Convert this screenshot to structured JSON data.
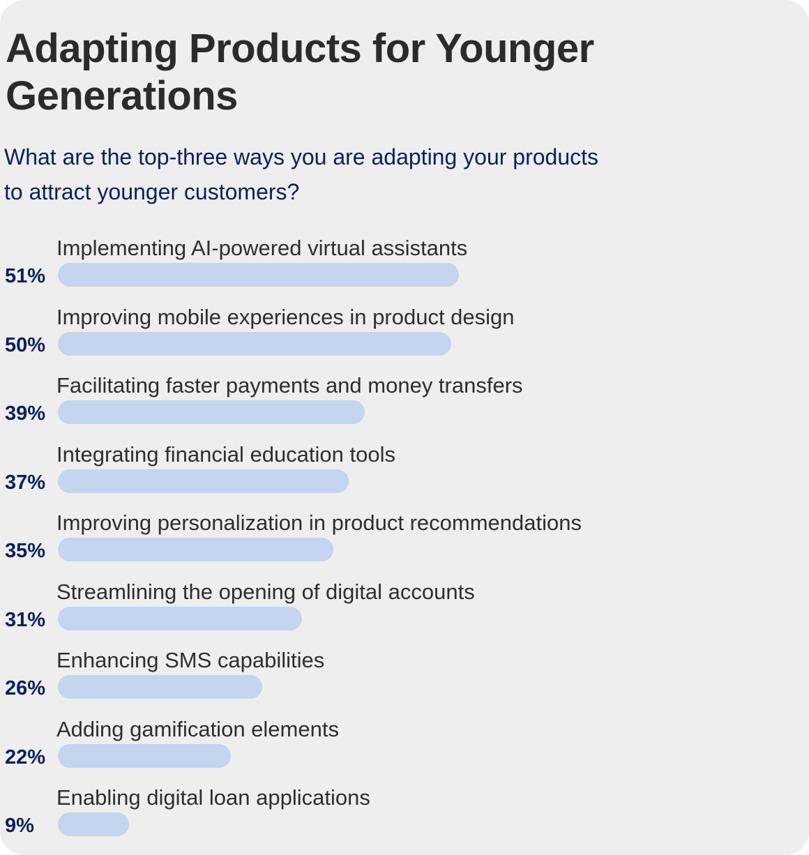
{
  "title": "Adapting Products for Younger Generations",
  "subtitle": "What are the top-three ways you are adapting your products to attract younger customers?",
  "colors": {
    "background": "#eeeeee",
    "bar": "#c5d4ef",
    "title_text": "#2b2b2b",
    "accent_text": "#0d1f5c"
  },
  "chart_data": {
    "type": "bar",
    "orientation": "horizontal",
    "title": "Adapting Products for Younger Generations",
    "subtitle": "What are the top-three ways you are adapting your products to attract younger customers?",
    "unit": "%",
    "grid": false,
    "categories": [
      "Implementing AI-powered virtual assistants",
      "Improving mobile experiences in product design",
      "Facilitating faster payments and money transfers",
      "Integrating financial education tools",
      "Improving personalization in product recommendations",
      "Streamlining the opening of digital accounts",
      "Enhancing SMS capabilities",
      "Adding gamification elements",
      "Enabling digital loan applications"
    ],
    "values": [
      51,
      50,
      39,
      37,
      35,
      31,
      26,
      22,
      9
    ],
    "value_labels": [
      "51%",
      "50%",
      "39%",
      "37%",
      "35%",
      "31%",
      "26%",
      "22%",
      "9%"
    ]
  }
}
